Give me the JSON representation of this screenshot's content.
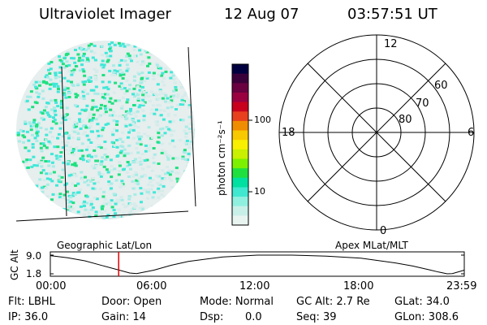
{
  "header": {
    "instrument": "Ultraviolet Imager",
    "date": "12 Aug 07",
    "time": "03:57:51 UT"
  },
  "colorbar": {
    "label": "photon cm⁻²s⁻¹",
    "ticks": [
      "100",
      "10"
    ],
    "colors": [
      "#000040",
      "#3a003a",
      "#6a0040",
      "#9a0040",
      "#c8001e",
      "#e8401e",
      "#f08c00",
      "#f8c800",
      "#f8f000",
      "#c8f000",
      "#7cf000",
      "#20e040",
      "#00e0a0",
      "#40e8d0",
      "#90f0e0",
      "#c8f0e8",
      "#e8f4f0"
    ],
    "scale": "log"
  },
  "image_labels": {
    "geo": "Geographic Lat/Lon",
    "apex": "Apex MLat/MLT"
  },
  "polar_plot": {
    "mlt_labels": [
      "12",
      "18",
      "6",
      "0"
    ],
    "mlat_labels": [
      "60",
      "70",
      "80"
    ]
  },
  "altitude_strip": {
    "ylabel": "GC Alt",
    "yticks": [
      "9.0",
      "1.8"
    ],
    "xticks": [
      "00:00",
      "06:00",
      "12:00",
      "18:00",
      "23:59"
    ],
    "current_time_marker_color": "#e00000"
  },
  "chart_data": {
    "type": "line",
    "title": "",
    "xlabel": "",
    "ylabel": "GC Alt",
    "x_hours": [
      0,
      1,
      2,
      3,
      4,
      4.6,
      5,
      6,
      7,
      8,
      10,
      12,
      14,
      16,
      18,
      20,
      21,
      22,
      22.5,
      23,
      23.3,
      23.99
    ],
    "y_re": [
      8.8,
      8.0,
      6.8,
      5.0,
      3.2,
      2.1,
      1.9,
      3.2,
      5.1,
      6.6,
      8.3,
      9.0,
      9.0,
      8.6,
      7.8,
      6.0,
      4.8,
      3.3,
      2.5,
      1.8,
      1.9,
      3.2
    ],
    "ylim": [
      1.8,
      9.0
    ],
    "xlim": [
      0,
      23.99
    ],
    "marker_hour": 3.96
  },
  "status": {
    "flt": "Flt: LBHL",
    "door": "Door: Open",
    "mode": "Mode: Normal",
    "gcalt": "GC Alt: 2.7 Re",
    "glat": "GLat: 34.0",
    "ip": "IP: 36.0",
    "gain": "Gain: 14",
    "dsp_label": "Dsp:",
    "dsp_value": "0.0",
    "seq": "Seq: 39",
    "glon": "GLon: 308.6"
  }
}
